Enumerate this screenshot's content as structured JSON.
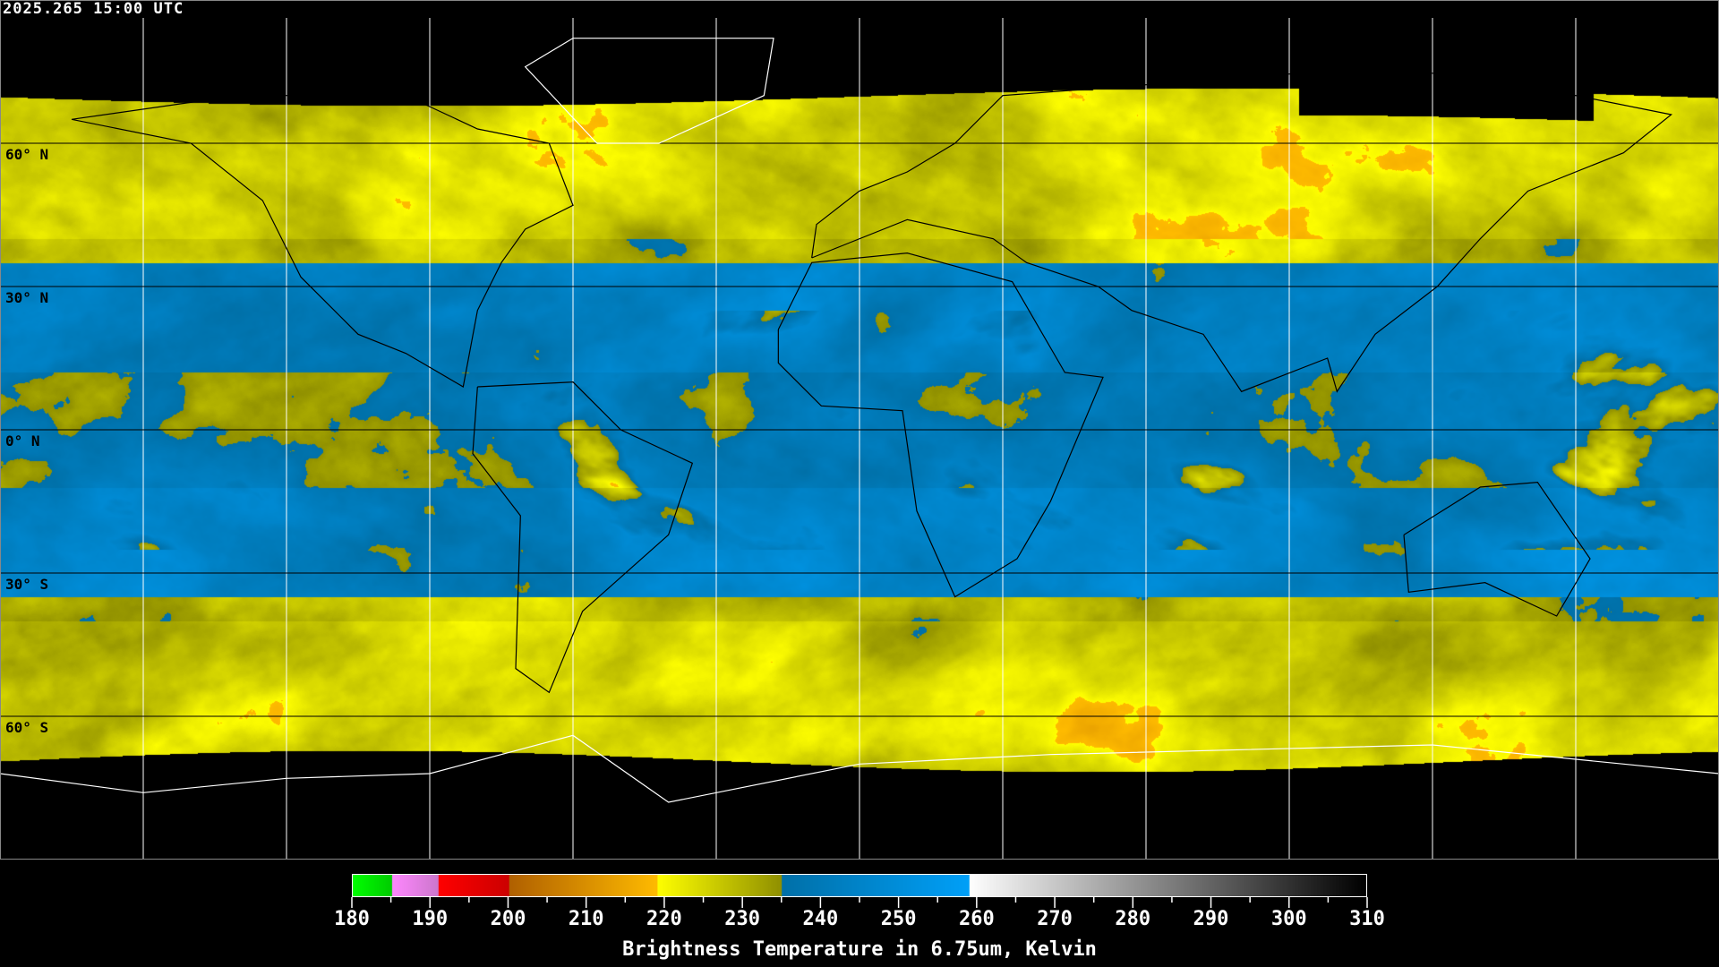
{
  "header": {
    "timestamp": "2025.265 15:00 UTC"
  },
  "map": {
    "projection": "equirectangular",
    "lat_labels": [
      "60° N",
      "30° N",
      "0° N",
      "30° S",
      "60° S"
    ],
    "gridline_color": "#000000",
    "coastline_color": "#000000",
    "polar_coastline_color": "#ffffff",
    "missing_data_color": "#000000"
  },
  "colorbar": {
    "title": "Brightness Temperature in 6.75um, Kelvin",
    "ticks": [
      "180",
      "190",
      "200",
      "210",
      "220",
      "230",
      "240",
      "250",
      "260",
      "270",
      "280",
      "290",
      "300",
      "310"
    ],
    "range": [
      180,
      310
    ],
    "segments": [
      {
        "from": 180,
        "to": 185,
        "start": "#00ff00",
        "end": "#00cc00"
      },
      {
        "from": 185,
        "to": 191,
        "start": "#ff88ff",
        "end": "#cc77cc"
      },
      {
        "from": 191,
        "to": 200,
        "start": "#ff0000",
        "end": "#cc0000"
      },
      {
        "from": 200,
        "to": 219,
        "start": "#b06000",
        "end": "#ffbb00"
      },
      {
        "from": 219,
        "to": 235,
        "start": "#ffff00",
        "end": "#909000"
      },
      {
        "from": 235,
        "to": 259,
        "start": "#0070a8",
        "end": "#00a0f8"
      },
      {
        "from": 259,
        "to": 310,
        "start": "#ffffff",
        "end": "#000000"
      }
    ]
  }
}
